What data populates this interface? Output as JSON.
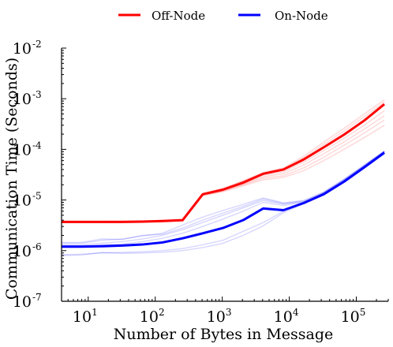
{
  "chart_data": {
    "type": "line",
    "xlabel": "Number of Bytes in Message",
    "ylabel": "Communication Time (Seconds)",
    "xscale": "log",
    "yscale": "log",
    "xlim": [
      4,
      300000
    ],
    "ylim": [
      1e-07,
      0.01
    ],
    "grid": false,
    "legend_placement": "top-center",
    "x_ticks": [
      {
        "base": "10",
        "exp": "1",
        "value": 10
      },
      {
        "base": "10",
        "exp": "2",
        "value": 100
      },
      {
        "base": "10",
        "exp": "3",
        "value": 1000
      },
      {
        "base": "10",
        "exp": "4",
        "value": 10000
      },
      {
        "base": "10",
        "exp": "5",
        "value": 100000
      }
    ],
    "y_ticks": [
      {
        "base": "10",
        "exp": "-7",
        "value": 1e-07
      },
      {
        "base": "10",
        "exp": "-6",
        "value": 1e-06
      },
      {
        "base": "10",
        "exp": "-5",
        "value": 1e-05
      },
      {
        "base": "10",
        "exp": "-4",
        "value": 0.0001
      },
      {
        "base": "10",
        "exp": "-3",
        "value": 0.001
      },
      {
        "base": "10",
        "exp": "-2",
        "value": 0.01
      }
    ],
    "x": [
      4,
      8,
      16,
      32,
      64,
      128,
      256,
      512,
      1024,
      2048,
      4096,
      8192,
      16384,
      32768,
      65536,
      131072,
      262144
    ],
    "series": [
      {
        "name": "Off-Node",
        "color": "#ff0000",
        "values": [
          3.7e-06,
          3.7e-06,
          3.7e-06,
          3.7e-06,
          3.75e-06,
          3.85e-06,
          4e-06,
          1.3e-05,
          1.6e-05,
          2.2e-05,
          3.3e-05,
          4e-05,
          6.3e-05,
          0.00011,
          0.000195,
          0.00037,
          0.00078
        ]
      },
      {
        "name": "On-Node",
        "color": "#0000ff",
        "values": [
          1.2e-06,
          1.2e-06,
          1.22e-06,
          1.26e-06,
          1.32e-06,
          1.45e-06,
          1.75e-06,
          2.2e-06,
          2.8e-06,
          4e-06,
          6.8e-06,
          6.3e-06,
          8.7e-06,
          1.3e-05,
          2.3e-05,
          4.4e-05,
          8.6e-05
        ]
      }
    ],
    "background_series": [
      {
        "color": "#ff0000",
        "values": [
          3.55e-06,
          3.55e-06,
          3.55e-06,
          3.56e-06,
          3.6e-06,
          3.7e-06,
          3.8e-06,
          1.22e-05,
          1.45e-05,
          1.9e-05,
          2.5e-05,
          2.8e-05,
          3.8e-05,
          6e-05,
          0.0001,
          0.00017,
          0.0003
        ]
      },
      {
        "color": "#ff0000",
        "values": [
          3.6e-06,
          3.6e-06,
          3.6e-06,
          3.62e-06,
          3.65e-06,
          3.75e-06,
          3.9e-06,
          1.25e-05,
          1.5e-05,
          2e-05,
          2.7e-05,
          3e-05,
          4.3e-05,
          7e-05,
          0.00012,
          0.00021,
          0.00038
        ]
      },
      {
        "color": "#ff0000",
        "values": [
          3.65e-06,
          3.65e-06,
          3.65e-06,
          3.66e-06,
          3.7e-06,
          3.8e-06,
          3.95e-06,
          1.27e-05,
          1.55e-05,
          2.05e-05,
          2.9e-05,
          3.3e-05,
          4.9e-05,
          8.2e-05,
          0.00014,
          0.00025,
          0.00046
        ]
      },
      {
        "color": "#ff0000",
        "values": [
          3.75e-06,
          3.75e-06,
          3.75e-06,
          3.76e-06,
          3.8e-06,
          3.9e-06,
          4.05e-06,
          1.32e-05,
          1.65e-05,
          2.35e-05,
          3.4e-05,
          4.1e-05,
          6.8e-05,
          0.000125,
          0.00023,
          0.00044,
          0.00086
        ]
      },
      {
        "color": "#ff0000",
        "values": [
          3.8e-06,
          3.8e-06,
          3.8e-06,
          3.82e-06,
          3.85e-06,
          3.95e-06,
          4.1e-06,
          1.35e-05,
          1.7e-05,
          2.4e-05,
          3.5e-05,
          4.3e-05,
          7.3e-05,
          0.00014,
          0.00026,
          0.0005,
          0.00095
        ]
      },
      {
        "color": "#ff0000",
        "values": [
          3.7e-06,
          3.7e-06,
          3.72e-06,
          3.74e-06,
          3.78e-06,
          3.88e-06,
          4.02e-06,
          1.28e-05,
          1.58e-05,
          2.15e-05,
          3.1e-05,
          3.6e-05,
          5.6e-05,
          9.5e-05,
          0.000165,
          0.0003,
          0.00058
        ]
      },
      {
        "color": "#0000ff",
        "values": [
          8e-07,
          8.2e-07,
          9.2e-07,
          8.8e-07,
          9e-07,
          9.3e-07,
          1e-06,
          1.15e-06,
          1.4e-06,
          2e-06,
          3.1e-06,
          5.6e-06,
          8.5e-06,
          1.35e-05,
          2.4e-05,
          4.6e-05,
          9e-05
        ]
      },
      {
        "color": "#0000ff",
        "values": [
          8.3e-07,
          8.5e-07,
          9e-07,
          9.2e-07,
          9.5e-07,
          1e-06,
          1.1e-06,
          1.3e-06,
          1.6e-06,
          2.4e-06,
          3.6e-06,
          6e-06,
          8.8e-06,
          1.4e-05,
          2.5e-05,
          4.7e-05,
          9e-05
        ]
      },
      {
        "color": "#0000ff",
        "values": [
          1.45e-06,
          1.45e-06,
          1.7e-06,
          1.65e-06,
          2e-06,
          2.1e-06,
          2.8e-06,
          4e-06,
          5.5e-06,
          7.5e-06,
          1.05e-05,
          8.5e-06,
          9.5e-06,
          1.4e-05,
          2.5e-05,
          4.8e-05,
          9.2e-05
        ]
      },
      {
        "color": "#0000ff",
        "values": [
          1.4e-06,
          1.4e-06,
          1.6e-06,
          1.7e-06,
          1.95e-06,
          2.2e-06,
          3.2e-06,
          4.6e-06,
          6.2e-06,
          8.2e-06,
          1.1e-05,
          8.8e-06,
          9.8e-06,
          1.45e-05,
          2.6e-05,
          4.9e-05,
          9.3e-05
        ]
      },
      {
        "color": "#0000ff",
        "values": [
          1.3e-06,
          1.3e-06,
          1.4e-06,
          1.5e-06,
          1.7e-06,
          2e-06,
          2.6e-06,
          3.6e-06,
          5e-06,
          7e-06,
          9.8e-06,
          8.3e-06,
          9.3e-06,
          1.38e-05,
          2.45e-05,
          4.7e-05,
          9.1e-05
        ]
      },
      {
        "color": "#0000ff",
        "values": [
          1.25e-06,
          1.25e-06,
          1.3e-06,
          1.35e-06,
          1.5e-06,
          1.75e-06,
          2.2e-06,
          3e-06,
          4.2e-06,
          6e-06,
          9e-06,
          7.8e-06,
          9e-06,
          1.35e-05,
          2.4e-05,
          4.6e-05,
          9e-05
        ]
      }
    ]
  }
}
